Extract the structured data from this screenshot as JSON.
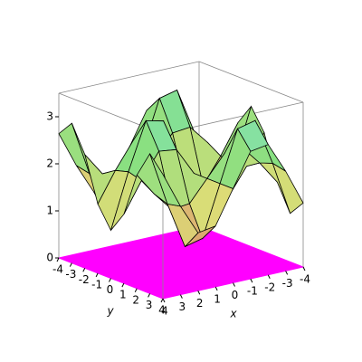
{
  "chart_data": {
    "type": "surface",
    "x": [
      -4,
      -3,
      -2,
      -1,
      0,
      1,
      2,
      3,
      4
    ],
    "y": [
      -4,
      -3,
      -2,
      -1,
      0,
      1,
      2,
      3,
      4
    ],
    "z": [
      [
        1.36,
        2.12,
        2.77,
        2.71,
        2,
        1.29,
        1.23,
        1.88,
        2.64
      ],
      [
        1.03,
        2.18,
        3.17,
        3.08,
        2,
        0.92,
        0.83,
        1.82,
        2.97
      ],
      [
        1.59,
        2.08,
        2.49,
        2.45,
        2,
        1.55,
        1.51,
        1.92,
        2.41
      ],
      [
        2.53,
        1.9,
        1.36,
        1.41,
        2,
        2.59,
        2.64,
        2.1,
        1.47
      ],
      [
        2.98,
        1.82,
        0.82,
        0.91,
        2,
        3.09,
        3.18,
        2.18,
        1.02
      ],
      [
        2.53,
        1.9,
        1.36,
        1.41,
        2,
        2.59,
        2.64,
        2.1,
        1.47
      ],
      [
        1.59,
        2.08,
        2.49,
        2.45,
        2,
        1.55,
        1.51,
        1.92,
        2.41
      ],
      [
        1.03,
        2.18,
        3.17,
        3.08,
        2,
        0.92,
        0.83,
        1.82,
        2.97
      ],
      [
        1.36,
        2.12,
        2.77,
        2.71,
        2,
        1.29,
        1.23,
        1.88,
        2.64
      ]
    ],
    "xlim": [
      -4,
      4
    ],
    "ylim": [
      -4,
      4
    ],
    "zlim": [
      0,
      3.5
    ],
    "xticks": [
      4,
      3,
      2,
      1,
      0,
      -1,
      -2,
      -3,
      -4
    ],
    "yticks": [
      -4,
      -3,
      -2,
      -1,
      0,
      1,
      2,
      3,
      4
    ],
    "zticks": [
      0,
      1,
      2,
      3
    ],
    "xlabel": "x",
    "ylabel": "y",
    "floor_color": "#ff00ff",
    "mesh_color": "#000000"
  }
}
